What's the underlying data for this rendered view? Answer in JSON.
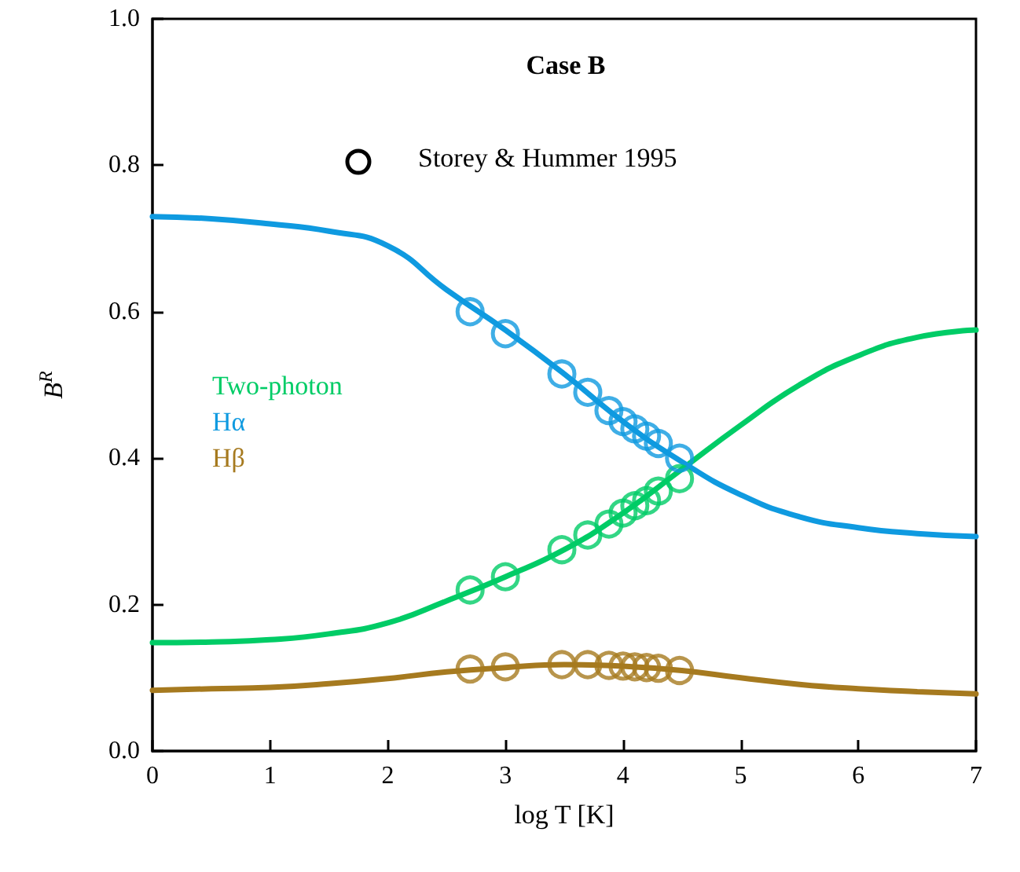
{
  "chart_data": {
    "type": "line",
    "title": "Case B",
    "xlabel": "log T [K]",
    "ylabel": "B$^{R}$",
    "annotations": [
      "Storey & Hummer 1995"
    ],
    "xlim": [
      0,
      7
    ],
    "xticks": [
      0,
      1,
      2,
      3,
      4,
      5,
      6,
      7
    ],
    "ylim": [
      0,
      1
    ],
    "yticks": [
      "0.0",
      0.2,
      0.4,
      0.6,
      0.8,
      "1.0"
    ],
    "grid": false,
    "legend": "left",
    "marker": "none",
    "line_style": "solid",
    "series": [
      {
        "name": "Two-photon",
        "color": "#00cc66",
        "x": [
          0,
          0.5,
          1,
          1.5,
          2,
          2.5,
          3,
          3.5,
          4,
          4.5,
          5,
          5.5,
          6,
          6.5,
          7
        ],
        "values": [
          0.148,
          0.149,
          0.152,
          0.16,
          0.175,
          0.205,
          0.238,
          0.275,
          0.325,
          0.385,
          0.445,
          0.5,
          0.54,
          0.565,
          0.575
        ]
      },
      {
        "name": "Hα",
        "color": "#0f9ae0",
        "x": [
          0,
          0.5,
          1,
          1.5,
          2,
          2.5,
          3,
          3.5,
          4,
          4.5,
          5,
          5.5,
          6,
          6.5,
          7
        ],
        "values": [
          0.73,
          0.727,
          0.72,
          0.71,
          0.69,
          0.63,
          0.575,
          0.515,
          0.45,
          0.395,
          0.35,
          0.32,
          0.305,
          0.297,
          0.293
        ]
      },
      {
        "name": "Hβ",
        "color": "#a67a1f",
        "x": [
          0,
          0.5,
          1,
          1.5,
          2,
          2.5,
          3,
          3.5,
          4,
          4.5,
          5,
          5.5,
          6,
          6.5,
          7
        ],
        "values": [
          0.083,
          0.085,
          0.087,
          0.092,
          0.099,
          0.108,
          0.114,
          0.118,
          0.116,
          0.11,
          0.1,
          0.091,
          0.085,
          0.081,
          0.078
        ]
      },
      {
        "type": "scatter",
        "marker": "circle",
        "color": "#00cc66",
        "x": [
          2.7,
          3.0,
          3.48,
          3.7,
          3.88,
          4.0,
          4.1,
          4.2,
          4.3,
          4.48
        ],
        "values": [
          0.22,
          0.238,
          0.275,
          0.295,
          0.31,
          0.325,
          0.335,
          0.342,
          0.355,
          0.372
        ]
      },
      {
        "type": "scatter",
        "marker": "circle",
        "color": "#0f9ae0",
        "x": [
          2.7,
          3.0,
          3.48,
          3.7,
          3.88,
          4.0,
          4.1,
          4.2,
          4.3,
          4.48
        ],
        "values": [
          0.6,
          0.57,
          0.515,
          0.49,
          0.465,
          0.45,
          0.44,
          0.43,
          0.42,
          0.4
        ]
      },
      {
        "type": "scatter",
        "marker": "circle",
        "color": "#a67a1f",
        "x": [
          2.7,
          3.0,
          3.48,
          3.7,
          3.88,
          4.0,
          4.1,
          4.2,
          4.3,
          4.48
        ],
        "values": [
          0.112,
          0.115,
          0.118,
          0.118,
          0.117,
          0.116,
          0.115,
          0.114,
          0.113,
          0.11
        ]
      }
    ]
  }
}
